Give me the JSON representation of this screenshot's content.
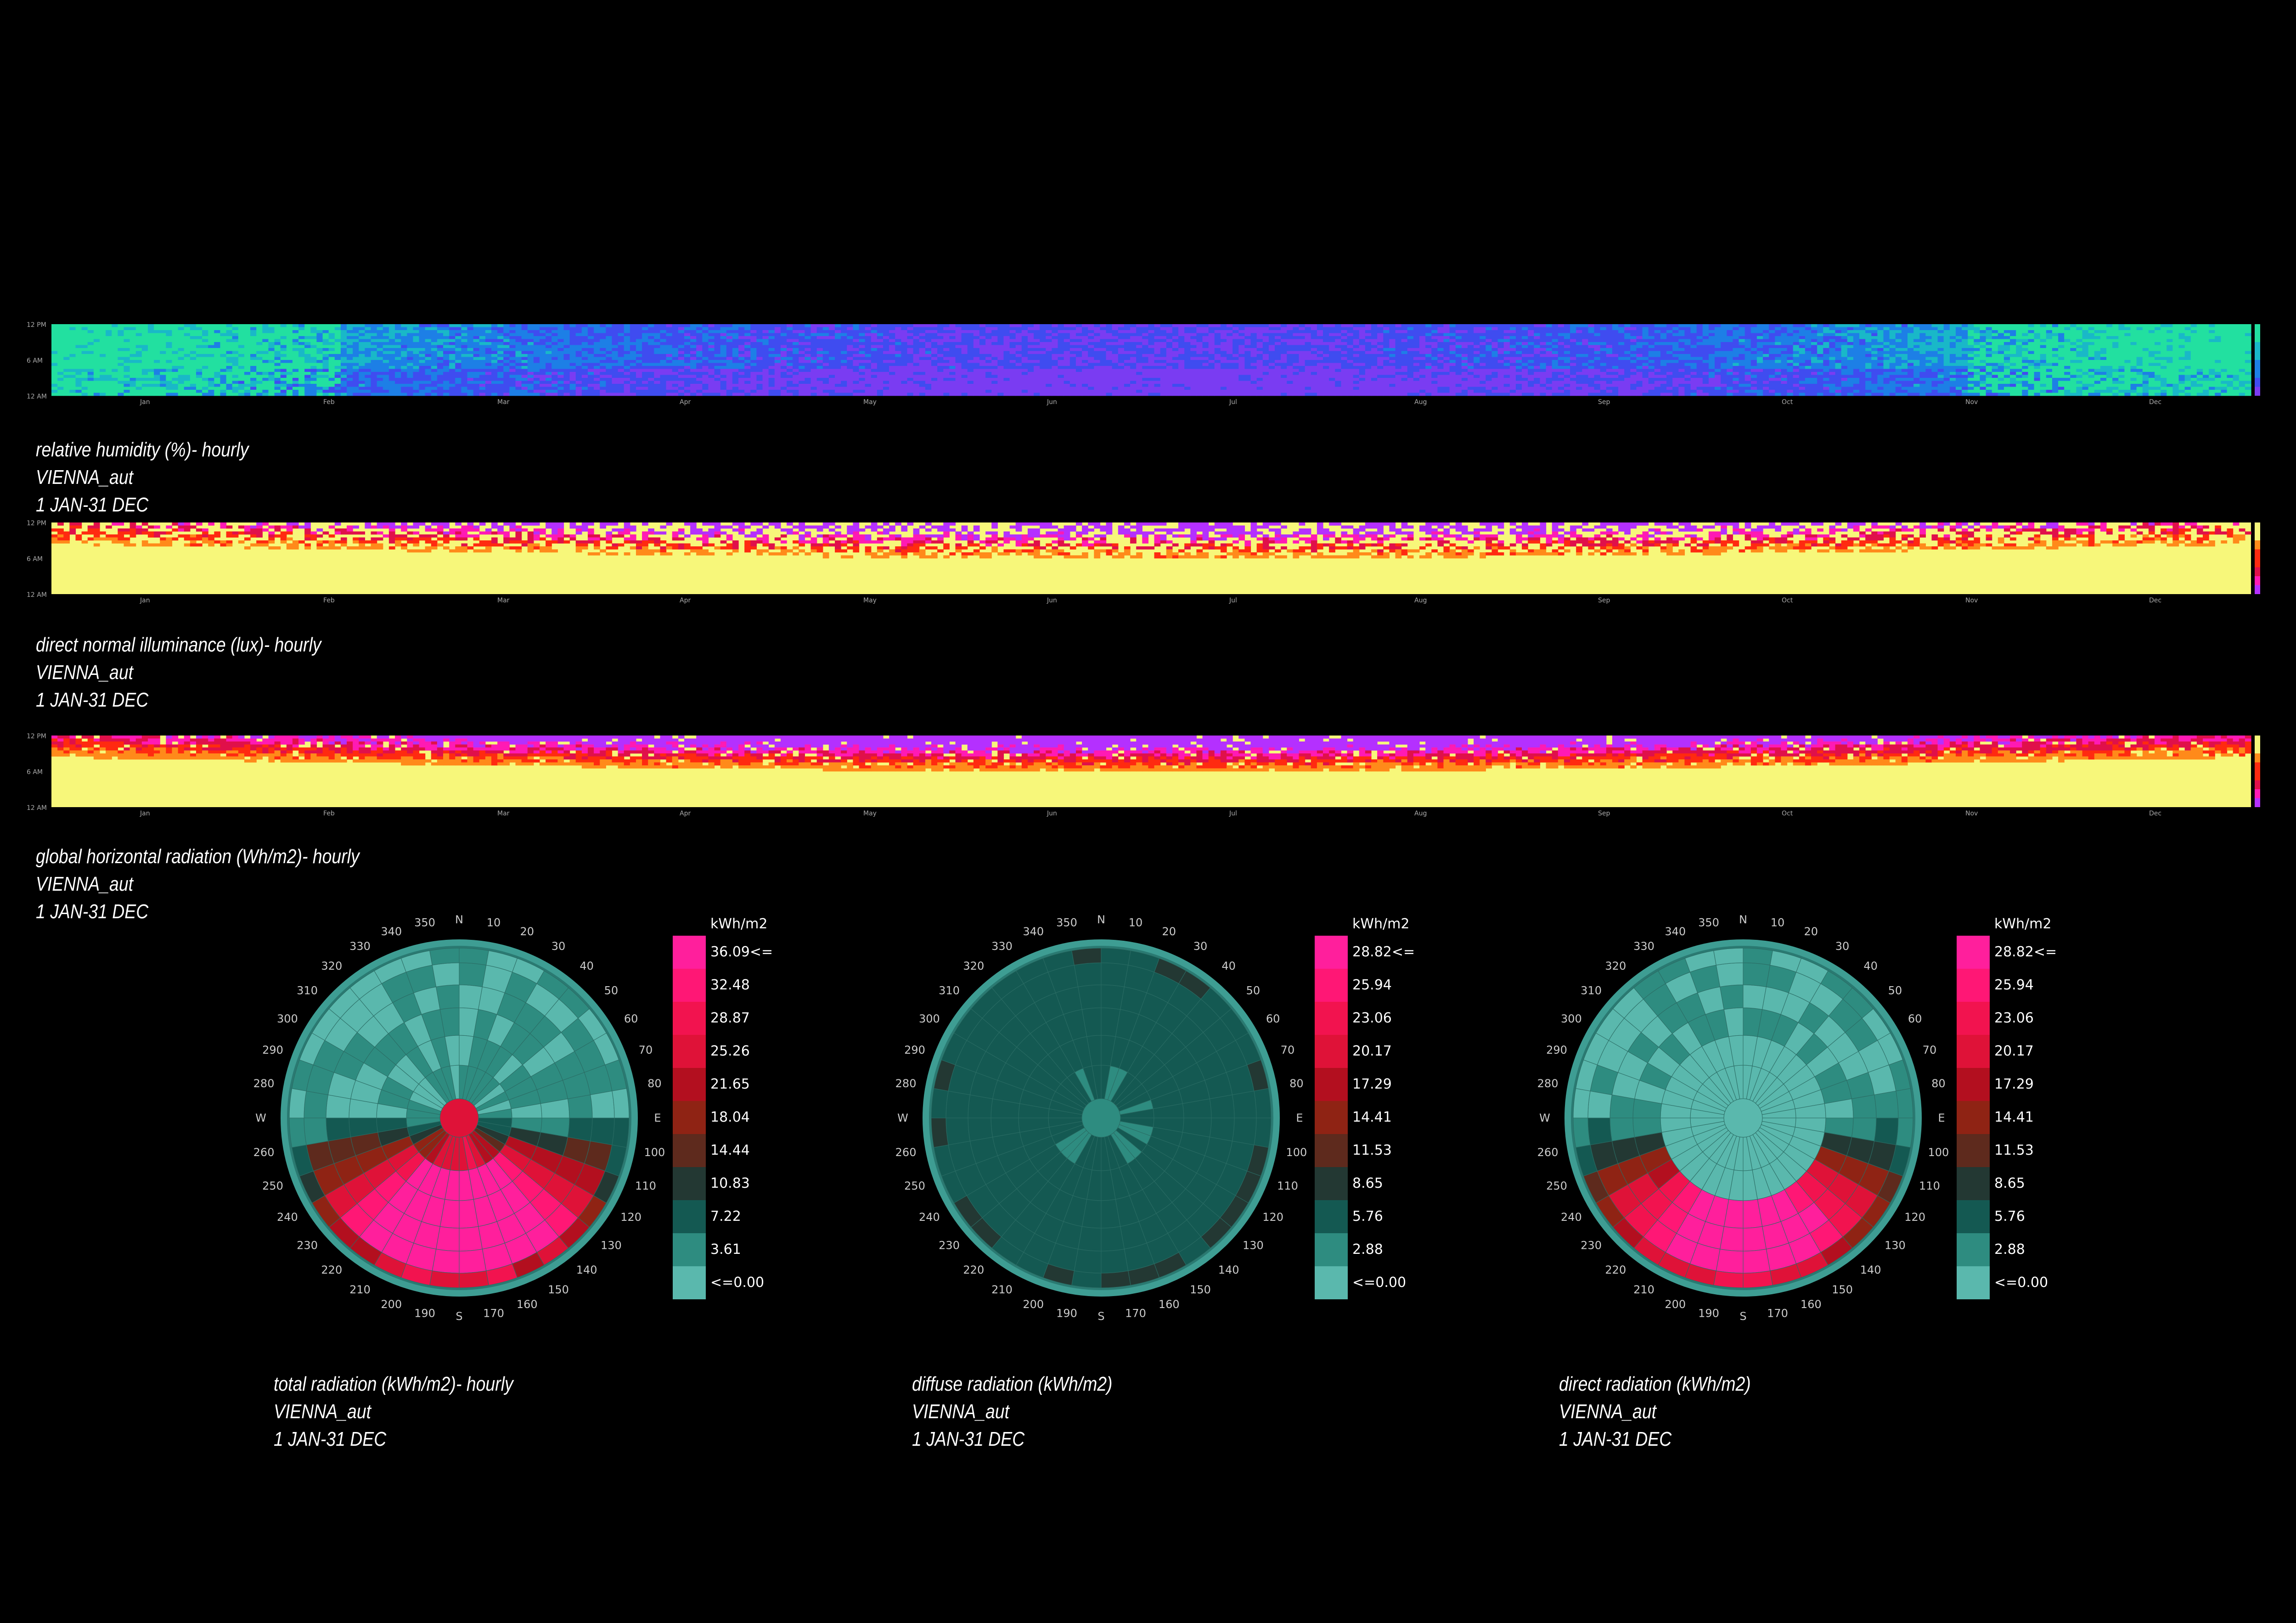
{
  "heatmaps": [
    {
      "id": "humidity",
      "caption": [
        "relative humidity (%)- hourly",
        "VIENNA_aut",
        "1 JAN-31 DEC"
      ],
      "palette": "cool",
      "hours": [
        "12 PM",
        "6 AM",
        "12 AM"
      ],
      "months": [
        "Jan",
        "Feb",
        "Mar",
        "Apr",
        "May",
        "Jun",
        "Jul",
        "Aug",
        "Sep",
        "Oct",
        "Nov",
        "Dec"
      ]
    },
    {
      "id": "illuminance",
      "caption": [
        "direct normal illuminance (lux)- hourly",
        "VIENNA_aut",
        "1 JAN-31 DEC"
      ],
      "palette": "hot",
      "hours": [
        "12 PM",
        "6 AM",
        "12 AM"
      ],
      "months": [
        "Jan",
        "Feb",
        "Mar",
        "Apr",
        "May",
        "Jun",
        "Jul",
        "Aug",
        "Sep",
        "Oct",
        "Nov",
        "Dec"
      ]
    },
    {
      "id": "global",
      "caption": [
        "global horizontal radiation (Wh/m2)- hourly",
        "VIENNA_aut",
        "1 JAN-31 DEC"
      ],
      "palette": "hot",
      "hours": [
        "12 PM",
        "6 AM",
        "12 AM"
      ],
      "months": [
        "Jan",
        "Feb",
        "Mar",
        "Apr",
        "May",
        "Jun",
        "Jul",
        "Aug",
        "Sep",
        "Oct",
        "Nov",
        "Dec"
      ]
    }
  ],
  "compass": {
    "N": "N",
    "E": "E",
    "S": "S",
    "W": "W",
    "degrees": [
      "10",
      "20",
      "30",
      "40",
      "50",
      "60",
      "70",
      "80",
      "100",
      "110",
      "120",
      "130",
      "140",
      "150",
      "160",
      "170",
      "190",
      "200",
      "210",
      "220",
      "230",
      "240",
      "250",
      "260",
      "280",
      "290",
      "300",
      "310",
      "320",
      "330",
      "340",
      "350"
    ]
  },
  "radiation_roses": [
    {
      "caption": [
        "total radiation (kWh/m2)- hourly",
        "VIENNA_aut",
        "1 JAN-31 DEC"
      ],
      "legend_unit": "kWh/m2",
      "legend": [
        "36.09<=",
        "32.48",
        "28.87",
        "25.26",
        "21.65",
        "18.04",
        "14.44",
        "10.83",
        "7.22",
        "3.61",
        "<=0.00"
      ]
    },
    {
      "caption": [
        "diffuse radiation (kWh/m2)",
        "VIENNA_aut",
        "1 JAN-31 DEC"
      ],
      "legend_unit": "kWh/m2",
      "legend": [
        "28.82<=",
        "25.94",
        "23.06",
        "20.17",
        "17.29",
        "14.41",
        "11.53",
        "8.65",
        "5.76",
        "2.88",
        "<=0.00"
      ]
    },
    {
      "caption": [
        "direct radiation (kWh/m2)",
        "VIENNA_aut",
        "1 JAN-31 DEC"
      ],
      "legend_unit": "kWh/m2",
      "legend": [
        "28.82<=",
        "25.94",
        "23.06",
        "20.17",
        "17.29",
        "14.41",
        "11.53",
        "8.65",
        "5.76",
        "2.88",
        "<=0.00"
      ]
    }
  ],
  "legend_colors": [
    "#ff1f9c",
    "#ff1775",
    "#f2134f",
    "#df1238",
    "#b30f1f",
    "#8f2314",
    "#5e2a1d",
    "#233833",
    "#145952",
    "#2e8c80",
    "#5ab8ad"
  ],
  "cool_colors": [
    "#22e0a0",
    "#19b8c8",
    "#1d7fe6",
    "#3f4cf0",
    "#7a3cf2"
  ],
  "hot_colors": [
    "#f7f77a",
    "#ff8a1a",
    "#ff2a10",
    "#e0104a",
    "#ff1ab4",
    "#b430ff"
  ]
}
